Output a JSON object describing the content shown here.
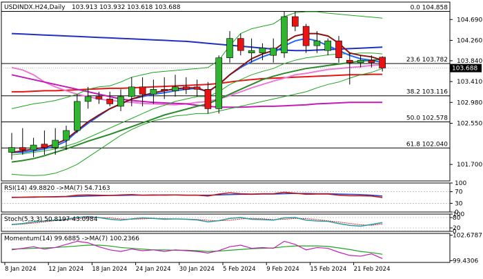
{
  "chart_data": {
    "type": "candlestick",
    "symbol": "USDINDX.H24,Daily",
    "ohlc_readout": "103.913 103.932 103.618 103.688",
    "current_price": 103.688,
    "current_price_label": "103.688",
    "price_axis": {
      "ylim": [
        101.36,
        105.05
      ],
      "ticks": [
        {
          "v": 104.69,
          "label": "104.690"
        },
        {
          "v": 104.26,
          "label": "104.260"
        },
        {
          "v": 103.84,
          "label": "103.840"
        },
        {
          "v": 103.41,
          "label": "103.410"
        },
        {
          "v": 102.98,
          "label": "102.980"
        },
        {
          "v": 102.55,
          "label": "102.550"
        },
        {
          "v": 101.7,
          "label": "101.700"
        }
      ]
    },
    "fib_levels": [
      {
        "v": 104.858,
        "label": "0.0 104.858"
      },
      {
        "v": 103.782,
        "label": "23.6 103.782"
      },
      {
        "v": 103.116,
        "label": "38.2 103.116"
      },
      {
        "v": 102.578,
        "label": "50.0 102.578"
      },
      {
        "v": 102.04,
        "label": "61.8 102.040"
      }
    ],
    "x_labels": [
      "8 Jan 2024",
      "12 Jan 2024",
      "18 Jan 2024",
      "24 Jan 2024",
      "30 Jan 2024",
      "5 Feb 2024",
      "9 Feb 2024",
      "15 Feb 2024",
      "21 Feb 2024"
    ],
    "x_label_bars": [
      0,
      4,
      8,
      12,
      16,
      20,
      24,
      28,
      32
    ],
    "candles": [
      {
        "o": 101.95,
        "h": 102.35,
        "l": 101.8,
        "c": 102.05
      },
      {
        "o": 102.05,
        "h": 102.45,
        "l": 101.9,
        "c": 102.0
      },
      {
        "o": 102.0,
        "h": 102.25,
        "l": 101.85,
        "c": 102.1
      },
      {
        "o": 102.12,
        "h": 102.4,
        "l": 101.9,
        "c": 102.05
      },
      {
        "o": 102.05,
        "h": 102.45,
        "l": 101.9,
        "c": 102.2
      },
      {
        "o": 102.2,
        "h": 102.5,
        "l": 102.0,
        "c": 102.4
      },
      {
        "o": 102.4,
        "h": 103.15,
        "l": 102.35,
        "c": 103.0
      },
      {
        "o": 103.0,
        "h": 103.3,
        "l": 102.85,
        "c": 103.1
      },
      {
        "o": 103.1,
        "h": 103.2,
        "l": 102.95,
        "c": 103.05
      },
      {
        "o": 103.05,
        "h": 103.2,
        "l": 102.9,
        "c": 102.95
      },
      {
        "o": 102.9,
        "h": 103.25,
        "l": 102.8,
        "c": 103.1
      },
      {
        "o": 103.1,
        "h": 103.5,
        "l": 102.9,
        "c": 103.3
      },
      {
        "o": 103.3,
        "h": 103.5,
        "l": 102.9,
        "c": 103.15
      },
      {
        "o": 103.15,
        "h": 103.45,
        "l": 102.95,
        "c": 103.25
      },
      {
        "o": 103.25,
        "h": 103.5,
        "l": 103.05,
        "c": 103.22
      },
      {
        "o": 103.22,
        "h": 103.55,
        "l": 103.1,
        "c": 103.3
      },
      {
        "o": 103.3,
        "h": 103.5,
        "l": 103.15,
        "c": 103.25
      },
      {
        "o": 103.3,
        "h": 103.45,
        "l": 103.1,
        "c": 103.25
      },
      {
        "o": 103.25,
        "h": 103.4,
        "l": 102.75,
        "c": 102.85
      },
      {
        "o": 102.85,
        "h": 103.95,
        "l": 102.75,
        "c": 103.9
      },
      {
        "o": 103.9,
        "h": 104.45,
        "l": 103.8,
        "c": 104.3
      },
      {
        "o": 104.3,
        "h": 104.4,
        "l": 103.95,
        "c": 104.05
      },
      {
        "o": 104.0,
        "h": 104.3,
        "l": 103.8,
        "c": 104.05
      },
      {
        "o": 104.0,
        "h": 104.2,
        "l": 103.85,
        "c": 104.1
      },
      {
        "o": 103.95,
        "h": 104.3,
        "l": 103.8,
        "c": 104.1
      },
      {
        "o": 104.0,
        "h": 104.86,
        "l": 103.9,
        "c": 104.75
      },
      {
        "o": 104.75,
        "h": 104.85,
        "l": 104.45,
        "c": 104.55
      },
      {
        "o": 104.55,
        "h": 104.6,
        "l": 104.0,
        "c": 104.15
      },
      {
        "o": 104.15,
        "h": 104.45,
        "l": 104.0,
        "c": 104.25
      },
      {
        "o": 104.05,
        "h": 104.3,
        "l": 103.95,
        "c": 104.25
      },
      {
        "o": 104.25,
        "h": 104.35,
        "l": 103.8,
        "c": 103.9
      },
      {
        "o": 103.85,
        "h": 104.0,
        "l": 103.35,
        "c": 103.8
      },
      {
        "o": 103.8,
        "h": 103.95,
        "l": 103.7,
        "c": 103.85
      },
      {
        "o": 103.85,
        "h": 103.95,
        "l": 103.7,
        "c": 103.8
      },
      {
        "o": 103.913,
        "h": 103.932,
        "l": 103.618,
        "c": 103.688
      }
    ],
    "overlays": [
      {
        "color": "#1f2fbf",
        "values": [
          104.4,
          104.39,
          104.38,
          104.37,
          104.36,
          104.35,
          104.34,
          104.33,
          104.32,
          104.31,
          104.3,
          104.29,
          104.28,
          104.27,
          104.26,
          104.25,
          104.24,
          104.22,
          104.2,
          104.18,
          104.16,
          104.14,
          104.12,
          104.1,
          104.08,
          104.06,
          104.05,
          104.05,
          104.06,
          104.07,
          104.08,
          104.09,
          104.1,
          104.11,
          104.12
        ]
      },
      {
        "color": "#e81313",
        "values": [
          103.2,
          103.2,
          103.21,
          103.22,
          103.22,
          103.23,
          103.24,
          103.25,
          103.26,
          103.27,
          103.27,
          103.28,
          103.29,
          103.3,
          103.31,
          103.32,
          103.33,
          103.34,
          103.35,
          103.37,
          103.4,
          103.43,
          103.45,
          103.47,
          103.48,
          103.49,
          103.5,
          103.51,
          103.52,
          103.53,
          103.54,
          103.55,
          103.55,
          103.56,
          103.56
        ]
      },
      {
        "color": "#ee78d8",
        "values": [
          103.7,
          103.65,
          103.55,
          103.4,
          103.3,
          103.22,
          103.15,
          103.1,
          103.05,
          103.02,
          103.0,
          102.98,
          102.96,
          102.95,
          102.94,
          102.93,
          102.95,
          102.98,
          103.0,
          103.05,
          103.12,
          103.2,
          103.28,
          103.35,
          103.42,
          103.48,
          103.55,
          103.58,
          103.62,
          103.66,
          103.68,
          103.7,
          103.72,
          103.74,
          103.76
        ]
      },
      {
        "color": "#c41ab8",
        "values": [
          103.55,
          103.5,
          103.45,
          103.4,
          103.35,
          103.3,
          103.25,
          103.2,
          103.15,
          103.1,
          103.05,
          103.02,
          103.0,
          102.98,
          102.97,
          102.96,
          102.95,
          102.92,
          102.9,
          102.88,
          102.88,
          102.88,
          102.89,
          102.9,
          102.9,
          102.91,
          102.92,
          102.93,
          102.95,
          102.96,
          102.97,
          102.98,
          102.98,
          102.98,
          102.98
        ]
      },
      {
        "color": "#1faa1f",
        "values": [
          101.9,
          101.92,
          101.95,
          101.98,
          102.02,
          102.08,
          102.15,
          102.25,
          102.35,
          102.45,
          102.55,
          102.65,
          102.75,
          102.85,
          102.92,
          103.0,
          103.05,
          103.1,
          103.1,
          103.2,
          103.35,
          103.45,
          103.55,
          103.62,
          103.68,
          103.78,
          103.85,
          103.9,
          103.93,
          103.96,
          103.98,
          103.98,
          104.0,
          104.0,
          103.98
        ]
      },
      {
        "color": "#2a8a2a",
        "values": [
          101.75,
          101.78,
          101.82,
          101.88,
          101.95,
          102.02,
          102.1,
          102.18,
          102.25,
          102.32,
          102.4,
          102.48,
          102.56,
          102.64,
          102.72,
          102.78,
          102.84,
          102.9,
          102.95,
          103.05,
          103.15,
          103.25,
          103.35,
          103.45,
          103.52,
          103.58,
          103.63,
          103.68,
          103.71,
          103.74,
          103.77,
          103.8,
          103.83,
          103.85,
          103.87
        ]
      },
      {
        "color": "#2266ff",
        "values": [
          101.95,
          101.95,
          101.98,
          102.02,
          102.08,
          102.18,
          102.38,
          102.55,
          102.7,
          102.85,
          102.95,
          103.05,
          103.1,
          103.15,
          103.18,
          103.22,
          103.25,
          103.27,
          103.2,
          103.35,
          103.55,
          103.7,
          103.82,
          103.92,
          104.0,
          104.15,
          104.25,
          104.3,
          104.25,
          104.15,
          104.05,
          103.95,
          103.88,
          103.85,
          103.8
        ]
      },
      {
        "color": "#8b1010",
        "values": [
          101.95,
          101.98,
          102.02,
          102.05,
          102.12,
          102.22,
          102.4,
          102.58,
          102.72,
          102.85,
          102.95,
          103.05,
          103.12,
          103.18,
          103.22,
          103.26,
          103.28,
          103.28,
          103.2,
          103.35,
          103.55,
          103.72,
          103.88,
          103.98,
          104.05,
          104.22,
          104.35,
          104.4,
          104.4,
          104.35,
          104.2,
          104.0,
          103.95,
          103.92,
          103.85
        ]
      },
      {
        "color": "#1aa51a",
        "values": [
          102.85,
          102.9,
          102.95,
          102.98,
          103.02,
          103.08,
          103.15,
          103.25,
          103.3,
          103.32,
          103.4,
          103.5,
          103.55,
          103.6,
          103.62,
          103.64,
          103.66,
          103.68,
          103.7,
          103.85,
          104.15,
          104.4,
          104.5,
          104.55,
          104.6,
          104.75,
          104.83,
          104.85,
          104.85,
          104.82,
          104.8,
          104.78,
          104.76,
          104.74,
          104.72
        ]
      },
      {
        "color": "#1aa51a",
        "values": [
          101.5,
          101.48,
          101.47,
          101.48,
          101.52,
          101.6,
          101.7,
          101.85,
          102.0,
          102.15,
          102.3,
          102.42,
          102.52,
          102.6,
          102.65,
          102.7,
          102.72,
          102.75,
          102.75,
          102.8,
          102.85,
          102.9,
          102.95,
          103.0,
          103.05,
          103.1,
          103.15,
          103.2,
          103.28,
          103.35,
          103.4,
          103.48,
          103.55,
          103.6,
          103.68
        ]
      }
    ],
    "rsi": {
      "label": "RSI(14) 49.8820  ->MA(7) 54.7163",
      "axis_ticks": [
        {
          "v": 100,
          "label": "100"
        },
        {
          "v": 70,
          "label": "70"
        },
        {
          "v": 30,
          "label": "30"
        },
        {
          "v": 0,
          "label": "0"
        }
      ],
      "rsi_values": [
        50,
        51,
        52,
        52,
        53,
        54,
        58,
        59,
        58,
        57,
        59,
        60,
        58,
        59,
        58,
        59,
        58,
        58,
        55,
        62,
        66,
        63,
        62,
        63,
        63,
        68,
        65,
        61,
        62,
        62,
        58,
        56,
        56,
        55,
        50
      ],
      "ma_values": [
        51,
        51,
        51,
        52,
        52,
        53,
        54,
        55,
        56,
        57,
        57,
        58,
        58,
        58,
        59,
        59,
        58,
        58,
        58,
        59,
        60,
        61,
        61,
        62,
        62,
        63,
        64,
        64,
        63,
        63,
        62,
        61,
        60,
        58,
        55
      ]
    },
    "stoch": {
      "label": "Stoch(5,3,3) 50.8197 43.0984",
      "axis_ticks": [
        {
          "v": 100,
          "label": "100"
        },
        {
          "v": 80,
          "label": "80"
        },
        {
          "v": 20,
          "label": "20"
        },
        {
          "v": 0,
          "label": "0"
        }
      ],
      "k_values": [
        40,
        45,
        55,
        60,
        65,
        70,
        80,
        85,
        80,
        70,
        65,
        72,
        78,
        75,
        70,
        72,
        70,
        66,
        55,
        62,
        75,
        80,
        70,
        68,
        65,
        78,
        80,
        65,
        60,
        58,
        45,
        35,
        30,
        40,
        51
      ],
      "d_values": [
        38,
        42,
        48,
        55,
        62,
        66,
        72,
        78,
        80,
        78,
        72,
        70,
        72,
        75,
        74,
        72,
        71,
        69,
        64,
        61,
        64,
        72,
        75,
        73,
        68,
        70,
        75,
        74,
        68,
        61,
        54,
        46,
        38,
        35,
        43
      ]
    },
    "momentum": {
      "label": "Momentum(14) 99.6885  ->MA(7) 100.2366",
      "axis_ticks": [
        {
          "v": 102.6787,
          "label": "102.6787"
        },
        {
          "v": 99.4306,
          "label": "99.4306"
        }
      ],
      "ylim": [
        99.2,
        102.9
      ],
      "mom_values": [
        100.8,
        101.0,
        101.2,
        100.9,
        101.1,
        101.5,
        101.9,
        101.7,
        101.2,
        100.8,
        100.6,
        100.9,
        100.7,
        100.8,
        100.6,
        100.8,
        100.7,
        100.6,
        100.4,
        100.7,
        101.2,
        101.4,
        101.0,
        101.1,
        101.0,
        101.9,
        101.5,
        100.8,
        101.1,
        101.0,
        100.5,
        100.1,
        100.0,
        100.3,
        99.69
      ],
      "ma_values": [
        100.9,
        100.95,
        101.0,
        101.05,
        101.1,
        101.2,
        101.3,
        101.4,
        101.4,
        101.3,
        101.1,
        101.0,
        100.9,
        100.8,
        100.8,
        100.75,
        100.75,
        100.7,
        100.6,
        100.65,
        100.75,
        100.85,
        100.95,
        101.0,
        101.05,
        101.2,
        101.3,
        101.3,
        101.3,
        101.25,
        101.05,
        100.85,
        100.6,
        100.45,
        100.24
      ]
    }
  }
}
